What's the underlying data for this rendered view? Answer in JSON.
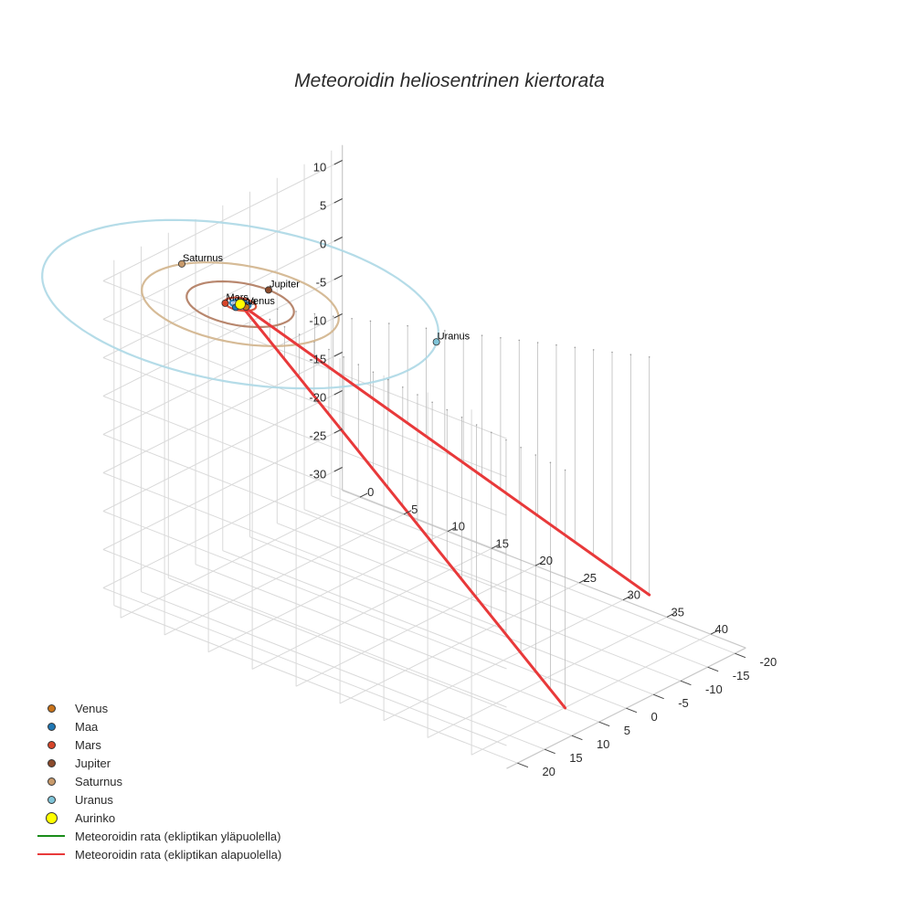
{
  "chart_data": {
    "type": "scatter3d",
    "title": "Meteoroidin heliosentrinen kiertorata",
    "axes": {
      "x": {
        "ticks": [
          0,
          5,
          10,
          15,
          20,
          25,
          30,
          35,
          40
        ],
        "range": [
          -2,
          44
        ]
      },
      "y": {
        "ticks": [
          -20,
          -15,
          -10,
          -5,
          0,
          5,
          10,
          15,
          20
        ],
        "range": [
          -22,
          22
        ]
      },
      "z": {
        "ticks": [
          -30,
          -25,
          -20,
          -15,
          -10,
          -5,
          0,
          5,
          10
        ],
        "range": [
          -33,
          12
        ]
      }
    },
    "colors": {
      "venus": "#c8731a",
      "maa": "#1f77b4",
      "mars": "#d6452a",
      "jupiter": "#8b4a2b",
      "saturnus": "#c89a6b",
      "uranus": "#7fc4d8",
      "aurinko": "#ffff00",
      "above": "#1a8c1a",
      "below": "#e8393a",
      "jupiter_orbit": "#b07a5e",
      "saturn_orbit": "#d2b48c",
      "uranus_orbit": "#add8e6",
      "inner_orbit": "#9ab4d8"
    },
    "planets": [
      {
        "name": "Venus",
        "label": "Venus",
        "a": 0.72,
        "x": 0.72,
        "y": 0.1
      },
      {
        "name": "Maa",
        "label": "Maa",
        "a": 1.0,
        "x": 0.1,
        "y": 1.0
      },
      {
        "name": "Mars",
        "label": "Mars",
        "a": 1.52,
        "x": -1.1,
        "y": 1.0
      },
      {
        "name": "Jupiter",
        "label": "Jupiter",
        "a": 5.2,
        "x": 0.0,
        "y": -5.2
      },
      {
        "name": "Saturnus",
        "label": "Saturnus",
        "a": 9.54,
        "x": -8.9,
        "y": -3.6
      },
      {
        "name": "Uranus",
        "label": "Uranus",
        "a": 19.2,
        "x": 17.4,
        "y": -8.0
      }
    ],
    "sun": {
      "label": "Aurinko",
      "x": 0,
      "y": 0,
      "z": 0
    },
    "meteoroid_path": {
      "start": [
        0,
        0,
        0
      ],
      "branches": [
        {
          "end": [
            33,
            -22,
            -31
          ]
        },
        {
          "end": [
            42,
            8,
            -31
          ]
        }
      ]
    },
    "legend": [
      {
        "label": "Venus",
        "kind": "dot",
        "color_key": "venus",
        "size": 9
      },
      {
        "label": "Maa",
        "kind": "dot",
        "color_key": "maa",
        "size": 9
      },
      {
        "label": "Mars",
        "kind": "dot",
        "color_key": "mars",
        "size": 9
      },
      {
        "label": "Jupiter",
        "kind": "dot",
        "color_key": "jupiter",
        "size": 9
      },
      {
        "label": "Saturnus",
        "kind": "dot",
        "color_key": "saturnus",
        "size": 9
      },
      {
        "label": "Uranus",
        "kind": "dot",
        "color_key": "uranus",
        "size": 9
      },
      {
        "label": "Aurinko",
        "kind": "dot",
        "color_key": "aurinko",
        "size": 13
      },
      {
        "label": "Meteoroidin rata (ekliptikan yläpuolella)",
        "kind": "line",
        "color_key": "above"
      },
      {
        "label": "Meteoroidin rata (ekliptikan alapuolella)",
        "kind": "line",
        "color_key": "below"
      }
    ]
  }
}
